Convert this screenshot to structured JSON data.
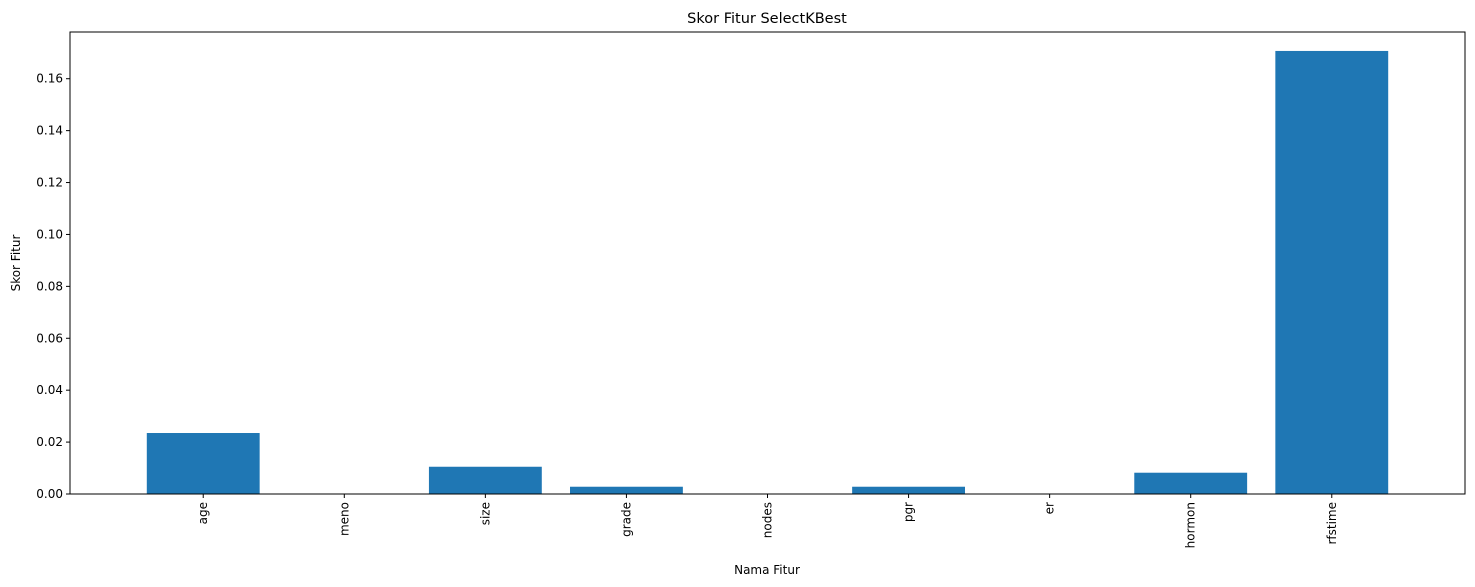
{
  "chart_data": {
    "type": "bar",
    "title": "Skor Fitur SelectKBest",
    "xlabel": "Nama Fitur",
    "ylabel": "Skor Fitur",
    "categories": [
      "age",
      "meno",
      "size",
      "grade",
      "nodes",
      "pgr",
      "er",
      "hormon",
      "rfstime"
    ],
    "values": [
      0.0235,
      0.0,
      0.0105,
      0.0028,
      0.0,
      0.0028,
      0.0,
      0.0082,
      0.1707
    ],
    "ylim": [
      0,
      0.178
    ],
    "yticks": [
      "0.00",
      "0.02",
      "0.04",
      "0.06",
      "0.08",
      "0.10",
      "0.12",
      "0.14",
      "0.16"
    ],
    "ytick_values": [
      0,
      0.02,
      0.04,
      0.06,
      0.08,
      0.1,
      0.12,
      0.14,
      0.16
    ],
    "grid": false,
    "bar_color": "#1f77b4"
  }
}
